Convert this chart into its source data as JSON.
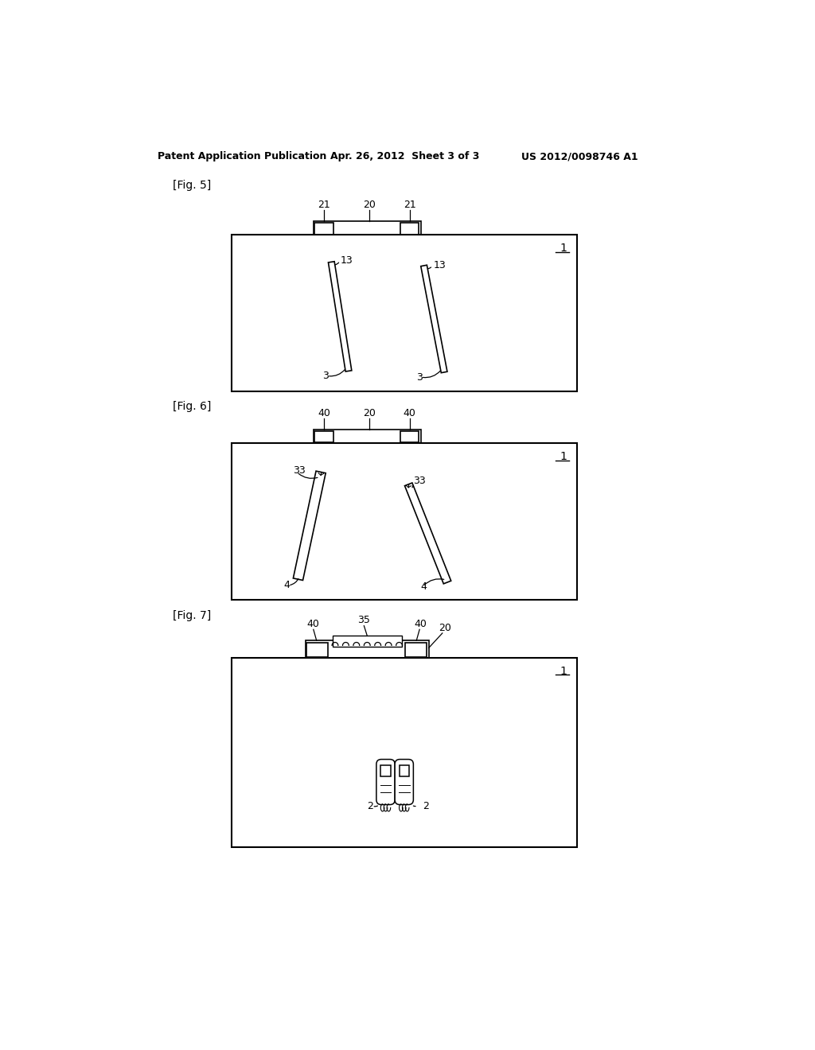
{
  "header_left": "Patent Application Publication",
  "header_center": "Apr. 26, 2012  Sheet 3 of 3",
  "header_right": "US 2012/0098746 A1",
  "fig5_label": "[Fig. 5]",
  "fig6_label": "[Fig. 6]",
  "fig7_label": "[Fig. 7]",
  "bg_color": "#ffffff",
  "line_color": "#000000"
}
